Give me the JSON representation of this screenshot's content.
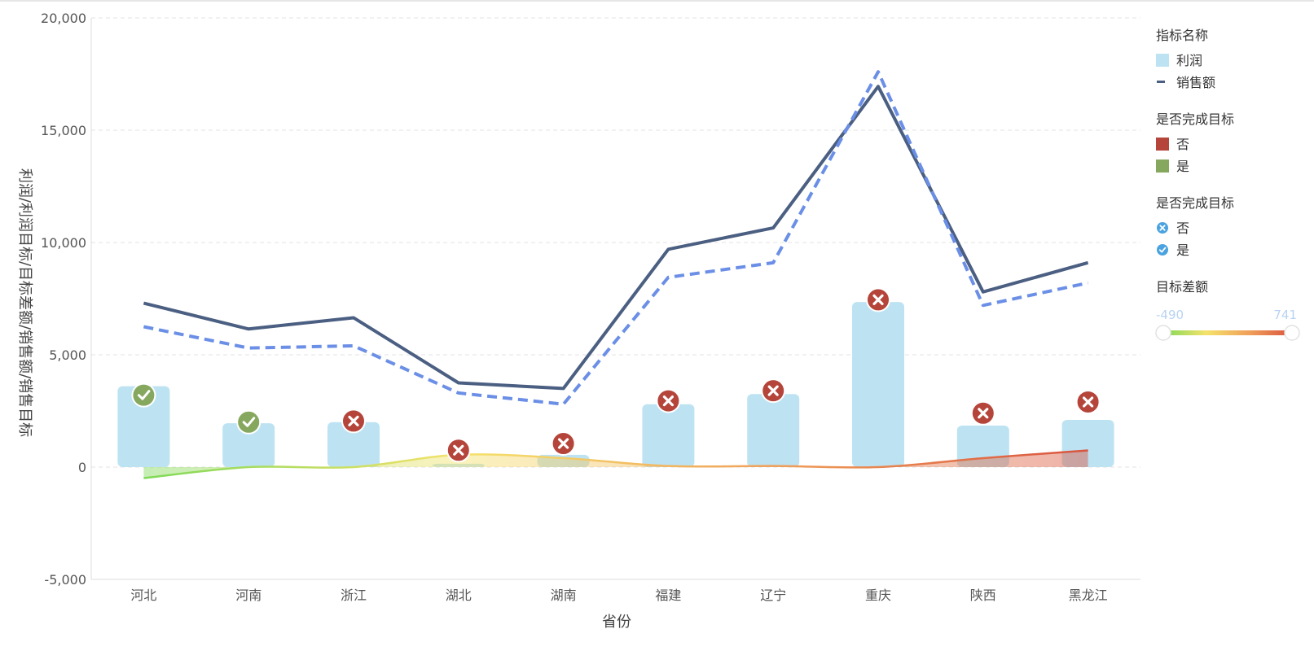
{
  "colors": {
    "profit_bar": "#bde3f2",
    "sales_line": "#4b5f82",
    "sales_target_line": "#6b8fe6",
    "not_done": "#b5453a",
    "done": "#86a85e",
    "icon_blue": "#4aa3e0",
    "grid": "#e3e3e3",
    "gradient": [
      "#7ed957",
      "#f5e26b",
      "#f0a05a",
      "#d9533e"
    ]
  },
  "chart_data": {
    "type": "bar",
    "xlabel": "省份",
    "ylabel": "利润/利润目标/目标差额/销售额/销售目标",
    "categories": [
      "河北",
      "河南",
      "浙江",
      "湖北",
      "湖南",
      "福建",
      "辽宁",
      "重庆",
      "陕西",
      "黑龙江"
    ],
    "ylim": [
      -5000,
      20000
    ],
    "yticks": [
      -5000,
      0,
      5000,
      10000,
      15000,
      20000
    ],
    "ytick_labels": [
      "-5,000",
      "0",
      "5,000",
      "10,000",
      "15,000",
      "20,000"
    ],
    "grid": true,
    "legend_position": "right",
    "series": [
      {
        "name": "利润",
        "kind": "bar",
        "values": [
          3600,
          1950,
          2000,
          150,
          550,
          2800,
          3250,
          7350,
          1850,
          2100
        ]
      },
      {
        "name": "销售额",
        "kind": "line",
        "style": "solid",
        "values": [
          7300,
          6150,
          6650,
          3750,
          3500,
          9700,
          10650,
          16950,
          7800,
          9100
        ]
      },
      {
        "name": "销售目标",
        "kind": "line",
        "style": "dashed",
        "values": [
          6250,
          5300,
          5400,
          3300,
          2800,
          8450,
          9100,
          17600,
          7200,
          8200
        ]
      },
      {
        "name": "目标差额",
        "kind": "area",
        "values": [
          -490,
          0,
          0,
          550,
          400,
          50,
          50,
          0,
          400,
          741
        ]
      },
      {
        "name": "利润目标",
        "kind": "marker",
        "values": [
          3200,
          2000,
          2050,
          750,
          1050,
          2950,
          3400,
          7450,
          2400,
          2900
        ]
      }
    ],
    "completed": [
      "是",
      "是",
      "否",
      "否",
      "否",
      "否",
      "否",
      "否",
      "否",
      "否"
    ]
  },
  "legend": {
    "group1": {
      "title": "指标名称",
      "items": [
        {
          "label": "利润",
          "icon": "bar-swatch"
        },
        {
          "label": "销售额",
          "icon": "line-dash"
        }
      ]
    },
    "group2": {
      "title": "是否完成目标",
      "items": [
        {
          "label": "否",
          "color": "#b5453a"
        },
        {
          "label": "是",
          "color": "#86a85e"
        }
      ]
    },
    "group3": {
      "title": "是否完成目标",
      "items": [
        {
          "label": "否",
          "icon": "x-circle-icon"
        },
        {
          "label": "是",
          "icon": "check-circle-icon"
        }
      ]
    },
    "group4": {
      "title": "目标差额",
      "min_label": "-490",
      "max_label": "741"
    }
  }
}
